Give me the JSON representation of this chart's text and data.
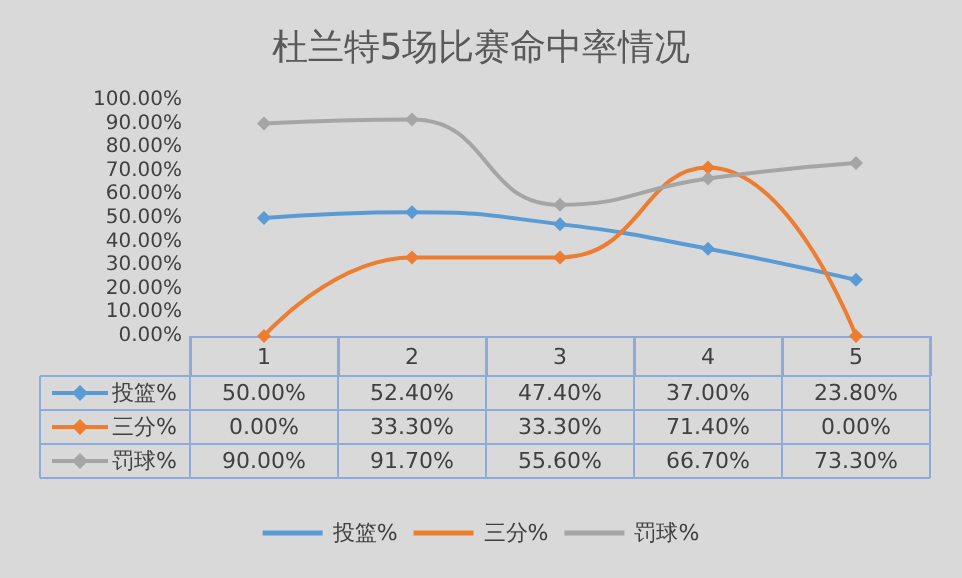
{
  "chart_data": {
    "type": "line",
    "title": "杜兰特5场比赛命中率情况",
    "categories": [
      "1",
      "2",
      "3",
      "4",
      "5"
    ],
    "series": [
      {
        "name": "投篮%",
        "color": "#5b9bd5",
        "values": [
          50.0,
          52.4,
          47.4,
          37.0,
          23.8
        ],
        "value_labels": [
          "50.00%",
          "52.40%",
          "47.40%",
          "37.00%",
          "23.80%"
        ]
      },
      {
        "name": "三分%",
        "color": "#ed7d31",
        "values": [
          0.0,
          33.3,
          33.3,
          71.4,
          0.0
        ],
        "value_labels": [
          "0.00%",
          "33.30%",
          "33.30%",
          "71.40%",
          "0.00%"
        ]
      },
      {
        "name": "罚球%",
        "color": "#a5a5a5",
        "values": [
          90.0,
          91.7,
          55.6,
          66.7,
          73.3
        ],
        "value_labels": [
          "90.00%",
          "91.70%",
          "55.60%",
          "66.70%",
          "73.30%"
        ]
      }
    ],
    "ylim": [
      0,
      100
    ],
    "yticks": [
      {
        "value": 0,
        "label": "0.00%"
      },
      {
        "value": 10,
        "label": "10.00%"
      },
      {
        "value": 20,
        "label": "20.00%"
      },
      {
        "value": 30,
        "label": "30.00%"
      },
      {
        "value": 40,
        "label": "40.00%"
      },
      {
        "value": 50,
        "label": "50.00%"
      },
      {
        "value": 60,
        "label": "60.00%"
      },
      {
        "value": 70,
        "label": "70.00%"
      },
      {
        "value": 80,
        "label": "80.00%"
      },
      {
        "value": 90,
        "label": "90.00%"
      },
      {
        "value": 100,
        "label": "100.00%"
      }
    ],
    "grid": false,
    "legend": "bottom",
    "marker": "diamond",
    "line_style": "solid"
  }
}
